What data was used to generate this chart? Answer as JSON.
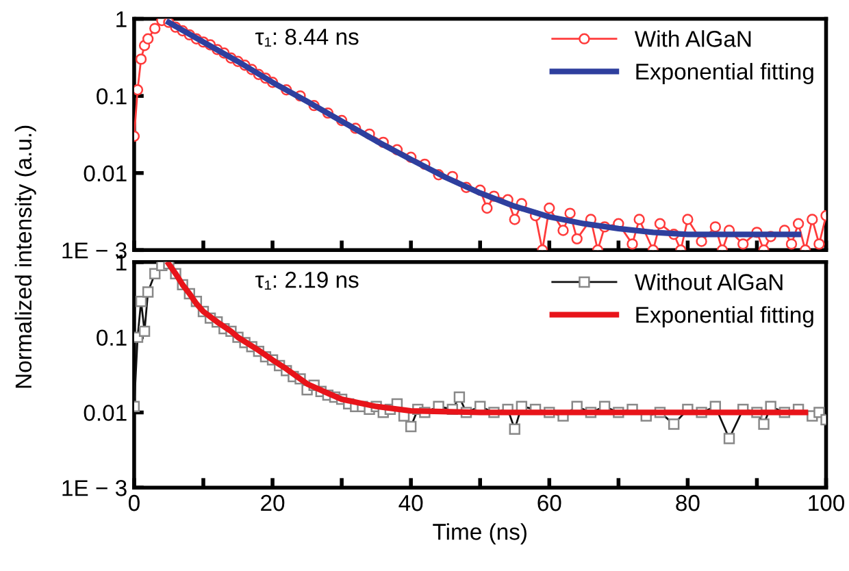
{
  "chart_data": [
    {
      "type": "line",
      "ylabel": "Normalized intensity (a.u.)",
      "annotations": [
        "τ₁: 8.44 ns"
      ],
      "log": "y",
      "legend": "top right",
      "tick_labels": "y",
      "xlim": [
        0,
        100
      ],
      "xticks": [
        {
          "value": 0,
          "label": null
        },
        {
          "value": 10,
          "label": null
        },
        {
          "value": 20,
          "label": null
        },
        {
          "value": 30,
          "label": null
        },
        {
          "value": 40,
          "label": null
        },
        {
          "value": 50,
          "label": null
        },
        {
          "value": 60,
          "label": null
        },
        {
          "value": 70,
          "label": null
        },
        {
          "value": 80,
          "label": null
        },
        {
          "value": 90,
          "label": null
        },
        {
          "value": 100,
          "label": null
        }
      ],
      "ylim": [
        0.001,
        1
      ],
      "yticks": [
        {
          "value": 0.001,
          "label": "1E − 3"
        },
        0.01,
        0.1,
        1
      ],
      "series": [
        {
          "name": "With AlGaN",
          "color": "#ff3b3b",
          "marker": "circle",
          "line_style": "solid",
          "x": [
            0,
            0.5,
            1,
            1.5,
            2,
            3,
            4,
            5,
            6,
            7,
            8,
            9,
            10,
            11,
            12,
            13,
            14,
            15,
            16,
            17,
            18,
            19,
            20,
            22,
            24,
            26,
            28,
            30,
            32,
            34,
            36,
            38,
            40,
            42,
            44,
            46,
            48,
            50,
            51,
            52,
            54,
            55,
            56,
            58,
            59,
            60,
            62,
            63,
            64,
            66,
            67,
            68,
            70,
            72,
            73,
            75,
            76,
            78,
            79,
            80,
            82,
            84,
            85,
            86,
            88,
            90,
            91,
            92,
            94,
            95,
            96,
            97,
            98,
            99,
            100
          ],
          "values": [
            0.03,
            0.12,
            0.3,
            0.45,
            0.55,
            0.75,
            0.95,
            0.9,
            0.78,
            0.7,
            0.62,
            0.55,
            0.5,
            0.46,
            0.4,
            0.36,
            0.31,
            0.28,
            0.25,
            0.22,
            0.19,
            0.17,
            0.15,
            0.12,
            0.1,
            0.075,
            0.06,
            0.048,
            0.038,
            0.032,
            0.025,
            0.02,
            0.016,
            0.013,
            0.0095,
            0.009,
            0.0065,
            0.006,
            0.0035,
            0.005,
            0.0045,
            0.0025,
            0.004,
            0.0028,
            0.001,
            0.0035,
            0.0018,
            0.003,
            0.0014,
            0.0025,
            0.001,
            0.002,
            0.0022,
            0.0012,
            0.0025,
            0.001,
            0.0022,
            0.0016,
            0.001,
            0.0025,
            0.0013,
            0.002,
            0.001,
            0.0018,
            0.0012,
            0.0017,
            0.001,
            0.0015,
            0.0018,
            0.0012,
            0.0022,
            0.001,
            0.0025,
            0.0012,
            0.0028
          ]
        },
        {
          "name": "Exponential fitting",
          "color": "#2e3f9e",
          "marker": "none",
          "line_style": "solid",
          "x": [
            5,
            10,
            15,
            20,
            25,
            30,
            35,
            40,
            45,
            50,
            55,
            60,
            65,
            70,
            75,
            80,
            85,
            90,
            96
          ],
          "values": [
            0.9,
            0.5,
            0.28,
            0.15,
            0.085,
            0.047,
            0.026,
            0.015,
            0.0088,
            0.0055,
            0.0037,
            0.0027,
            0.0022,
            0.0019,
            0.0017,
            0.0016,
            0.0016,
            0.0016,
            0.0016
          ]
        }
      ]
    },
    {
      "type": "line",
      "xlabel": "Time (ns)",
      "annotations": [
        "τ₁: 2.19 ns"
      ],
      "log": "y",
      "legend": "top right",
      "xlim": [
        0,
        100
      ],
      "xticks": [
        0,
        {
          "value": 10,
          "label": null
        },
        20,
        {
          "value": 30,
          "label": null
        },
        40,
        {
          "value": 50,
          "label": null
        },
        60,
        {
          "value": 70,
          "label": null
        },
        80,
        {
          "value": 90,
          "label": null
        },
        100
      ],
      "ylim": [
        0.001,
        1
      ],
      "yticks": [
        {
          "value": 0.001,
          "label": "1E − 3"
        },
        0.01,
        0.1,
        1
      ],
      "series": [
        {
          "name": "Without AlGaN",
          "color": "#111111",
          "marker": "square",
          "line_style": "solid",
          "x": [
            0,
            0.5,
            1,
            1.5,
            2,
            3,
            4,
            5,
            6,
            7,
            8,
            9,
            10,
            11,
            12,
            13,
            14,
            15,
            16,
            17,
            18,
            19,
            20,
            21,
            22,
            23,
            24,
            25,
            26,
            27,
            28,
            29,
            30,
            31,
            32,
            33,
            34,
            35,
            36,
            37,
            38,
            39,
            40,
            41,
            42,
            44,
            46,
            47,
            48,
            50,
            52,
            54,
            55,
            56,
            58,
            60,
            62,
            64,
            66,
            68,
            70,
            72,
            74,
            76,
            78,
            80,
            82,
            84,
            86,
            88,
            90,
            91,
            92,
            94,
            96,
            98,
            99,
            100
          ],
          "values": [
            0.012,
            0.1,
            0.3,
            0.12,
            0.4,
            0.7,
            0.9,
            0.95,
            0.7,
            0.5,
            0.38,
            0.3,
            0.22,
            0.18,
            0.16,
            0.13,
            0.12,
            0.1,
            0.085,
            0.075,
            0.065,
            0.055,
            0.05,
            0.042,
            0.036,
            0.03,
            0.028,
            0.02,
            0.023,
            0.019,
            0.017,
            0.016,
            0.015,
            0.013,
            0.012,
            0.012,
            0.011,
            0.012,
            0.01,
            0.011,
            0.013,
            0.009,
            0.0065,
            0.011,
            0.01,
            0.012,
            0.011,
            0.016,
            0.01,
            0.012,
            0.01,
            0.011,
            0.006,
            0.012,
            0.011,
            0.01,
            0.009,
            0.012,
            0.01,
            0.012,
            0.01,
            0.011,
            0.009,
            0.01,
            0.007,
            0.011,
            0.01,
            0.012,
            0.0045,
            0.011,
            0.01,
            0.007,
            0.012,
            0.01,
            0.011,
            0.009,
            0.01,
            0.008
          ]
        },
        {
          "name": "Exponential fitting",
          "color": "#e8141a",
          "marker": "none",
          "line_style": "solid",
          "x": [
            5,
            6,
            7,
            8,
            9,
            10,
            12,
            14,
            15,
            18,
            20,
            22,
            25,
            28,
            30,
            35,
            40,
            50,
            97
          ],
          "values": [
            0.95,
            0.7,
            0.5,
            0.38,
            0.28,
            0.22,
            0.16,
            0.12,
            0.1,
            0.067,
            0.05,
            0.038,
            0.024,
            0.018,
            0.015,
            0.012,
            0.0105,
            0.01,
            0.01
          ]
        }
      ]
    }
  ]
}
